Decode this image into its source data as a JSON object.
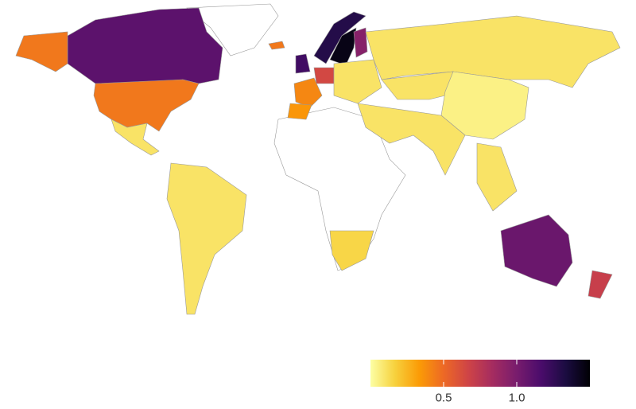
{
  "map": {
    "values": [
      1.1,
      0.45,
      0.1,
      0.1,
      0.15,
      0.45,
      1.2,
      1.3,
      1.45,
      0.95,
      0.4,
      0.35,
      0.65,
      0.1,
      0.1,
      0.1,
      0.05,
      0.1,
      0.1,
      1.05,
      0.7
    ],
    "colorbar": {
      "lim": [
        0,
        1.5
      ],
      "ticks": [
        0.5,
        {
          "value": 1,
          "label": "1.0"
        }
      ],
      "colors": [
        "#fcffa4",
        "#f7d13d",
        "#fb9b06",
        "#ed6925",
        "#cf4446",
        "#a52c60",
        "#781c6d",
        "#4a0c6b",
        "#1b0c41",
        "#000004"
      ]
    }
  }
}
